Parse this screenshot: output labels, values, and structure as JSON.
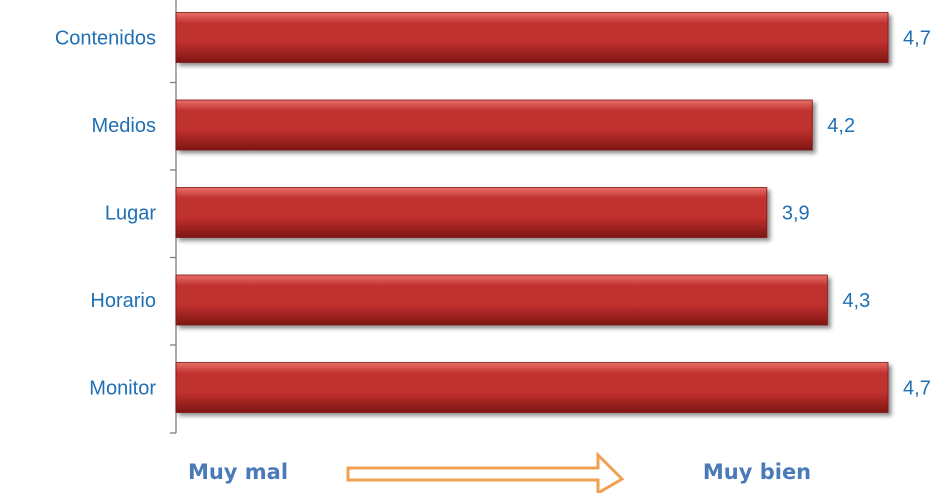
{
  "chart_data": {
    "type": "bar",
    "orientation": "horizontal",
    "categories": [
      "Contenidos",
      "Medios",
      "Lugar",
      "Horario",
      "Monitor"
    ],
    "values": [
      4.7,
      4.2,
      3.9,
      4.3,
      4.7
    ],
    "value_labels": [
      "4,7",
      "4,2",
      "3,9",
      "4,3",
      "4,7"
    ],
    "title": "",
    "xlabel": "",
    "ylabel": "",
    "xlim": [
      0,
      5
    ],
    "grid": false,
    "legend": "none"
  },
  "footer": {
    "left_label": "Muy mal",
    "right_label": "Muy bien",
    "arrow_icon": "right-arrow-icon"
  },
  "colors": {
    "bar_fill": "#c0302e",
    "bar_highlight": "#e8706a",
    "bar_shadow": "#7e1614",
    "label_text": "#1f6fb4",
    "footer_text": "#4a7ab8",
    "arrow_stroke": "#f0a050",
    "axis": "#808080"
  }
}
